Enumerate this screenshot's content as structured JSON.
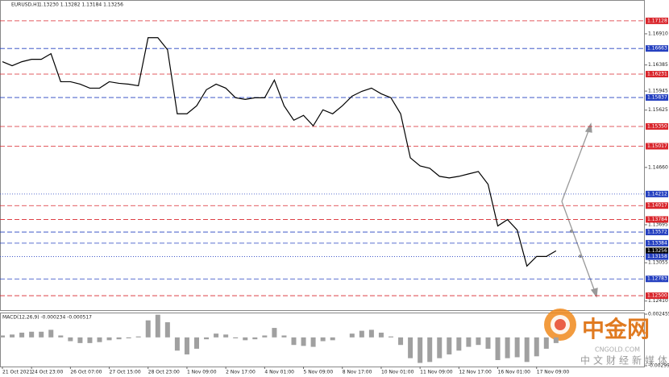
{
  "chart_data": [
    {
      "type": "line",
      "title": "EURUSD,H1",
      "subtitle": "1.13230 1.13282 1.13184 1.13256",
      "categories": [
        "21 Oct 2021",
        null,
        null,
        "24 Oct 23:00",
        null,
        null,
        null,
        "26 Oct 07:00",
        null,
        null,
        null,
        "27 Oct 15:00",
        null,
        null,
        null,
        "28 Oct 23:00",
        null,
        null,
        null,
        "1 Nov 09:00",
        null,
        null,
        null,
        "2 Nov 17:00",
        null,
        null,
        null,
        "4 Nov 01:00",
        null,
        null,
        null,
        "5 Nov 09:00",
        null,
        null,
        null,
        "8 Nov 17:00",
        null,
        null,
        null,
        "10 Nov 01:00",
        null,
        null,
        null,
        "11 Nov 09:00",
        null,
        null,
        null,
        "12 Nov 17:00",
        null,
        null,
        null,
        "16 Nov 01:00",
        null,
        null,
        null,
        "17 Nov 09:00",
        null,
        null
      ],
      "values": [
        1.1644,
        1.16373,
        1.1644,
        1.1648,
        1.1648,
        1.16575,
        1.16103,
        1.16103,
        1.16062,
        1.15995,
        1.15995,
        1.16103,
        1.16076,
        1.16062,
        1.16035,
        1.16845,
        1.16845,
        1.16642,
        1.15563,
        1.15563,
        1.15698,
        1.15968,
        1.16062,
        1.15995,
        1.15833,
        1.15806,
        1.15833,
        1.15833,
        1.1613,
        1.15698,
        1.15455,
        1.15536,
        1.15361,
        1.1563,
        1.15563,
        1.15698,
        1.1586,
        1.15941,
        1.15995,
        1.159,
        1.15833,
        1.15563,
        1.14821,
        1.14686,
        1.14645,
        1.1451,
        1.14483,
        1.1451,
        1.14551,
        1.14591,
        1.14376,
        1.13674,
        1.13782,
        1.13606,
        1.12999,
        1.13161,
        1.13161,
        1.13256
      ],
      "color": "#000000",
      "ylim": [
        1.12257,
        1.17452
      ],
      "yticks": [
        {
          "value": 1.1691,
          "label": "1.16910"
        },
        1.16385,
        1.15945,
        1.15625,
        {
          "value": 1.1466,
          "label": "1.14660"
        },
        1.13695,
        1.13055,
        {
          "value": 1.1241,
          "label": "1.12410"
        }
      ],
      "grid": false,
      "levels": [
        {
          "value": 1.17128,
          "label": "1.17128",
          "color": "#d9262c",
          "style": "dashed"
        },
        {
          "value": 1.16663,
          "label": "1.16663",
          "color": "#2540c0",
          "style": "dashed"
        },
        {
          "value": 1.16231,
          "label": "1.16231",
          "color": "#d9262c",
          "style": "dashed"
        },
        {
          "value": 1.15837,
          "label": "1.15837",
          "color": "#2540c0",
          "style": "dashed"
        },
        {
          "value": 1.1535,
          "label": "1.15350",
          "color": "#d9262c",
          "style": "dashed"
        },
        {
          "value": 1.15017,
          "label": "1.15017",
          "color": "#d9262c",
          "style": "dashed"
        },
        {
          "value": 1.14212,
          "label": "1.14212",
          "color": "#2540c0",
          "style": "dotted"
        },
        {
          "value": 1.14017,
          "label": "1.14017",
          "color": "#d9262c",
          "style": "dashed"
        },
        {
          "value": 1.13784,
          "label": "1.13784",
          "color": "#d9262c",
          "style": "dashed"
        },
        {
          "value": 1.13572,
          "label": "1.13572",
          "color": "#2540c0",
          "style": "dashed"
        },
        {
          "value": 1.13384,
          "label": "1.13384",
          "color": "#2540c0",
          "style": "dashed"
        },
        {
          "value": 1.13256,
          "label": "1.13256",
          "color": "#000000",
          "style": "none"
        },
        {
          "value": 1.13158,
          "label": "1.13158",
          "color": "#2540c0",
          "style": "dotted"
        },
        {
          "value": 1.12783,
          "label": "1.12783",
          "color": "#2540c0",
          "style": "dashed"
        },
        {
          "value": 1.125,
          "label": "1.12500",
          "color": "#d9262c",
          "style": "dashed"
        }
      ]
    },
    {
      "type": "bar",
      "title": "MACD(12,26,9) -0.000234 -0.000517",
      "values": [
        0.0002,
        0.0003,
        0.0005,
        0.0006,
        0.0006,
        0.0008,
        0.0002,
        -0.0004,
        -0.0006,
        -0.0006,
        -0.0005,
        -0.0003,
        -0.0002,
        -0.0001,
        0.0001,
        0.0018,
        0.0024,
        0.0016,
        -0.0014,
        -0.0018,
        -0.0012,
        -0.0002,
        0.0004,
        0.0003,
        -0.0001,
        -0.0003,
        -0.0002,
        0.0002,
        0.001,
        0.0002,
        -0.0008,
        -0.0009,
        -0.001,
        -0.0004,
        -0.0003,
        0,
        0.0004,
        0.0007,
        0.0008,
        0.0005,
        0.0001,
        -0.0008,
        -0.0022,
        -0.0027,
        -0.0026,
        -0.0022,
        -0.0018,
        -0.0014,
        -0.001,
        -0.0008,
        -0.0012,
        -0.0024,
        -0.0022,
        -0.0021,
        -0.0026,
        -0.002,
        -0.0012,
        -0.0006
      ],
      "color": "#a0a0a0",
      "ylim": [
        -0.002997,
        0.002455
      ],
      "yticks": [
        0.002455,
        -0.002997
      ]
    }
  ],
  "watermark": {
    "brand": "中金网",
    "site": "CNGOLD.COM",
    "slogan": "中文财经新媒体"
  }
}
